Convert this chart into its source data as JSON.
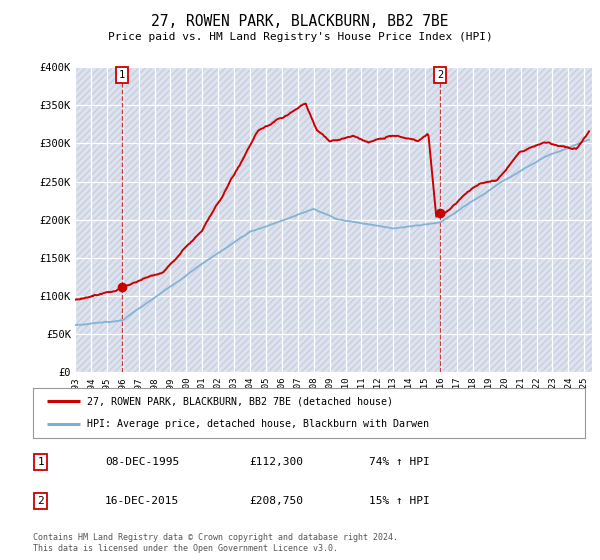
{
  "title": "27, ROWEN PARK, BLACKBURN, BB2 7BE",
  "subtitle": "Price paid vs. HM Land Registry's House Price Index (HPI)",
  "bg_color": "#f8f8f8",
  "plot_bg_color": "#e8eaf0",
  "hatch_color": "#d0d4e0",
  "grid_color": "#ffffff",
  "red_line_color": "#cc0000",
  "blue_line_color": "#7bafd4",
  "marker1_date": 1995.93,
  "marker1_value": 112300,
  "marker2_date": 2015.96,
  "marker2_value": 208750,
  "vline1_date": 1995.93,
  "vline2_date": 2015.96,
  "legend_label1": "27, ROWEN PARK, BLACKBURN, BB2 7BE (detached house)",
  "legend_label2": "HPI: Average price, detached house, Blackburn with Darwen",
  "note1_date": "08-DEC-1995",
  "note1_price": "£112,300",
  "note1_hpi": "74% ↑ HPI",
  "note2_date": "16-DEC-2015",
  "note2_price": "£208,750",
  "note2_hpi": "15% ↑ HPI",
  "copyright": "Contains HM Land Registry data © Crown copyright and database right 2024.\nThis data is licensed under the Open Government Licence v3.0.",
  "ylim": [
    0,
    400000
  ],
  "xlim": [
    1993,
    2025.5
  ],
  "yticks": [
    0,
    50000,
    100000,
    150000,
    200000,
    250000,
    300000,
    350000,
    400000
  ],
  "ytick_labels": [
    "£0",
    "£50K",
    "£100K",
    "£150K",
    "£200K",
    "£250K",
    "£300K",
    "£350K",
    "£400K"
  ],
  "xticks": [
    1993,
    1994,
    1995,
    1996,
    1997,
    1998,
    1999,
    2000,
    2001,
    2002,
    2003,
    2004,
    2005,
    2006,
    2007,
    2008,
    2009,
    2010,
    2011,
    2012,
    2013,
    2014,
    2015,
    2016,
    2017,
    2018,
    2019,
    2020,
    2021,
    2022,
    2023,
    2024,
    2025
  ]
}
